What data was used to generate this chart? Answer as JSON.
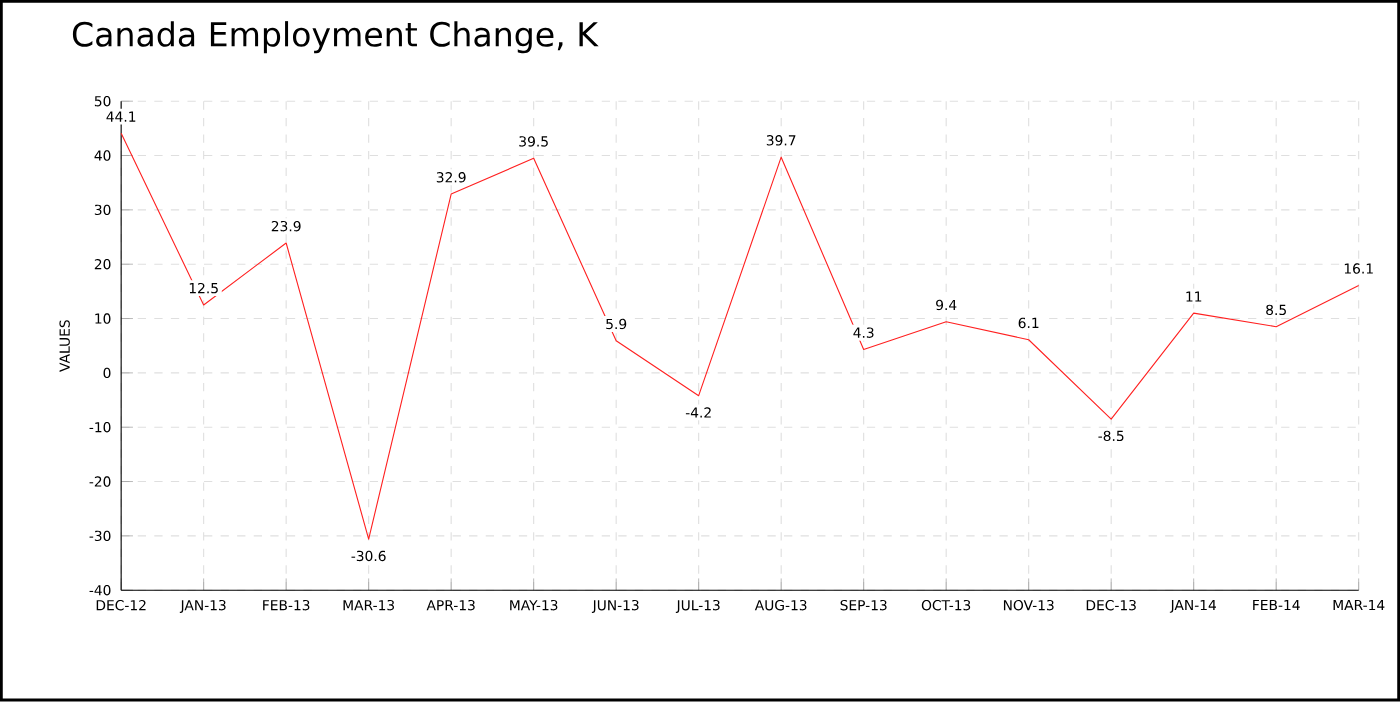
{
  "chart_data": {
    "type": "line",
    "title": "Canada Employment Change, K",
    "ylabel": "VALUES",
    "categories": [
      "DEC-12",
      "JAN-13",
      "FEB-13",
      "MAR-13",
      "APR-13",
      "MAY-13",
      "JUN-13",
      "JUL-13",
      "AUG-13",
      "SEP-13",
      "OCT-13",
      "NOV-13",
      "DEC-13",
      "JAN-14",
      "FEB-14",
      "MAR-14"
    ],
    "values": [
      44.1,
      12.5,
      23.9,
      -30.6,
      32.9,
      39.5,
      5.9,
      -4.2,
      39.7,
      4.3,
      9.4,
      6.1,
      -8.5,
      11,
      8.5,
      16.1
    ],
    "color": "#ff2020",
    "ylim": [
      -40,
      50
    ],
    "yticks": [
      -40,
      -30,
      -20,
      -10,
      0,
      10,
      20,
      30,
      40,
      50
    ],
    "grid": true,
    "data_labels": true,
    "marker": "none",
    "line_style": "solid"
  }
}
